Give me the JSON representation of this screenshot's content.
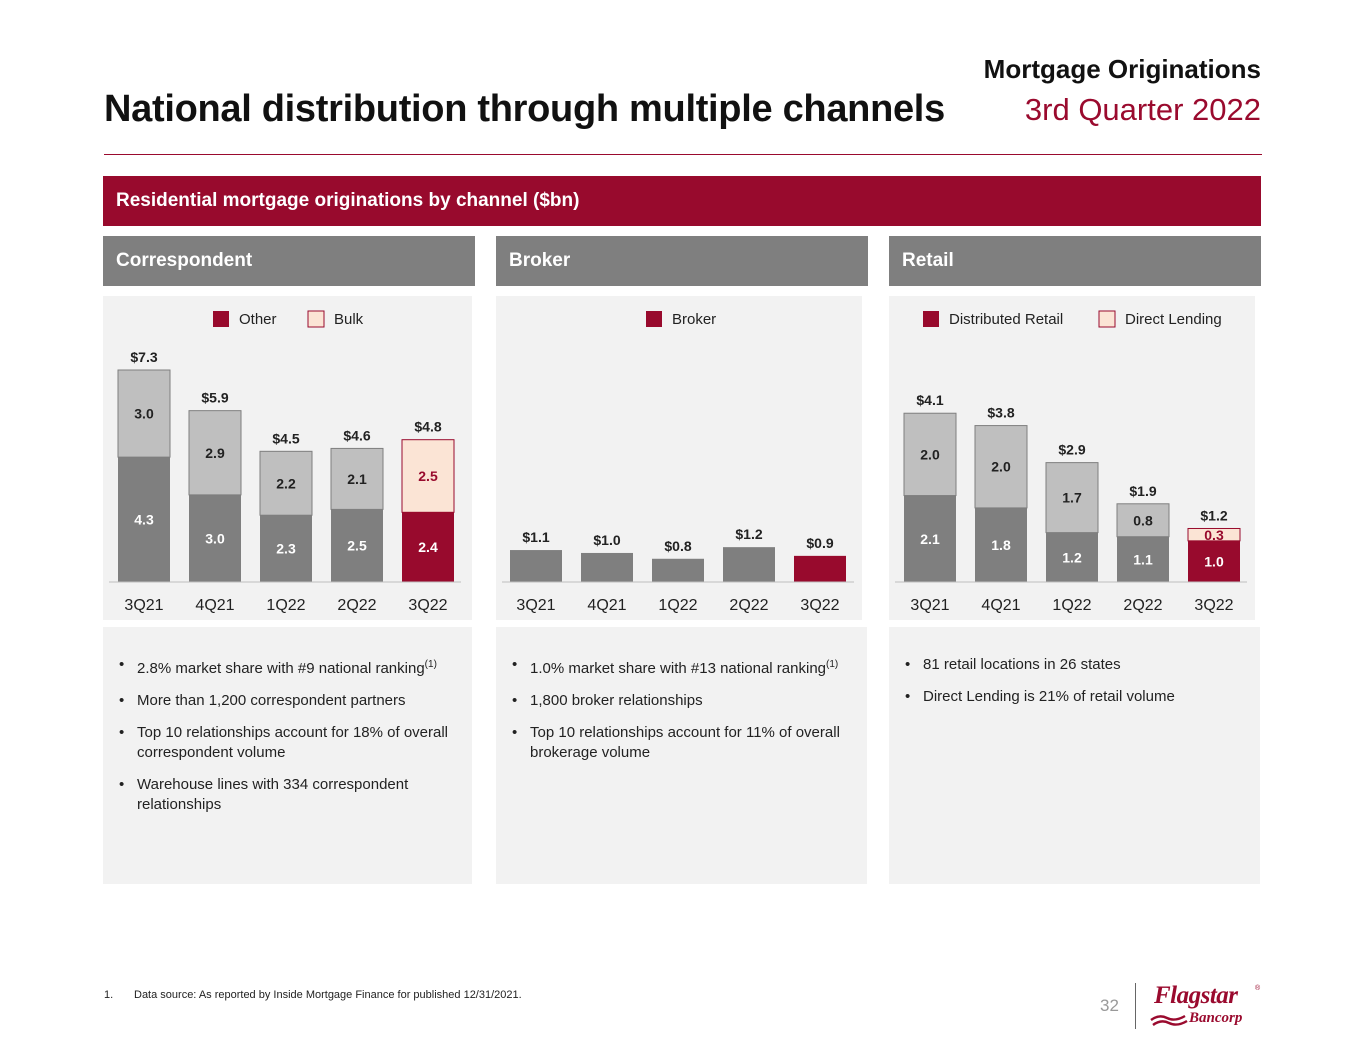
{
  "header": {
    "title": "National distribution through multiple channels",
    "section": "Mortgage Originations",
    "period": "3rd Quarter 2022"
  },
  "banner": "Residential mortgage originations by channel ($bn)",
  "panels": {
    "correspondent": {
      "heading": "Correspondent",
      "bullets": [
        {
          "text": "2.8% market share with #9 national ranking",
          "note": "(1)"
        },
        {
          "text": "More than 1,200 correspondent partners"
        },
        {
          "text": "Top 10 relationships account for 18% of overall correspondent volume"
        },
        {
          "text": "Warehouse lines with 334 correspondent relationships"
        }
      ]
    },
    "broker": {
      "heading": "Broker",
      "bullets": [
        {
          "text": "1.0% market share with #13 national ranking",
          "note": "(1)"
        },
        {
          "text": "1,800 broker relationships"
        },
        {
          "text": "Top 10 relationships account for 11% of overall brokerage volume"
        }
      ]
    },
    "retail": {
      "heading": "Retail",
      "bullets": [
        {
          "text": "81 retail locations in 26 states"
        },
        {
          "text": "Direct Lending is 21% of retail volume"
        }
      ]
    }
  },
  "chart_data": [
    {
      "id": "correspondent",
      "type": "bar",
      "stacked": true,
      "categories": [
        "3Q21",
        "4Q21",
        "1Q22",
        "2Q22",
        "3Q22"
      ],
      "series": [
        {
          "name": "Other",
          "values": [
            4.3,
            3.0,
            2.3,
            2.5,
            2.4
          ],
          "labels": [
            "4.3",
            "3.0",
            "2.3",
            "2.5",
            "2.4"
          ]
        },
        {
          "name": "Bulk",
          "values": [
            3.0,
            2.9,
            2.2,
            2.1,
            2.5
          ],
          "labels": [
            "3.0",
            "2.9",
            "2.2",
            "2.1",
            "2.5"
          ]
        }
      ],
      "totals": [
        "$7.3",
        "$5.9",
        "$4.5",
        "$4.6",
        "$4.8"
      ],
      "legend": [
        "Other",
        "Bulk"
      ],
      "ylim": [
        0,
        7.3
      ]
    },
    {
      "id": "broker",
      "type": "bar",
      "stacked": false,
      "categories": [
        "3Q21",
        "4Q21",
        "1Q22",
        "2Q22",
        "3Q22"
      ],
      "series": [
        {
          "name": "Broker",
          "values": [
            1.1,
            1.0,
            0.8,
            1.2,
            0.9
          ],
          "labels": [
            "",
            "",
            "",
            "",
            ""
          ]
        }
      ],
      "totals": [
        "$1.1",
        "$1.0",
        "$0.8",
        "$1.2",
        "$0.9"
      ],
      "legend": [
        "Broker"
      ],
      "ylim": [
        0,
        7.3
      ]
    },
    {
      "id": "retail",
      "type": "bar",
      "stacked": true,
      "categories": [
        "3Q21",
        "4Q21",
        "1Q22",
        "2Q22",
        "3Q22"
      ],
      "series": [
        {
          "name": "Distributed Retail",
          "values": [
            2.1,
            1.8,
            1.2,
            1.1,
            1.0
          ],
          "labels": [
            "2.1",
            "1.8",
            "1.2",
            "1.1",
            "1.0"
          ]
        },
        {
          "name": "Direct Lending",
          "values": [
            2.0,
            2.0,
            1.7,
            0.8,
            0.3
          ],
          "labels": [
            "2.0",
            "2.0",
            "1.7",
            "0.8",
            "0.3"
          ]
        }
      ],
      "totals": [
        "$4.1",
        "$3.8",
        "$2.9",
        "$1.9",
        "$1.2"
      ],
      "legend": [
        "Distributed Retail",
        "Direct Lending"
      ],
      "ylim": [
        0,
        5.15
      ]
    }
  ],
  "colors": {
    "brand": "#980a2d",
    "gray_dark": "#7f7f7f",
    "gray_light": "#bfbfbf",
    "bulk_fill": "#fbe4d5"
  },
  "footnote": {
    "number": "1.",
    "text": "Data source: As reported by Inside Mortgage Finance for published 12/31/2021."
  },
  "page_number": "32",
  "logo": {
    "name": "Flagstar",
    "sub": "Bancorp"
  }
}
